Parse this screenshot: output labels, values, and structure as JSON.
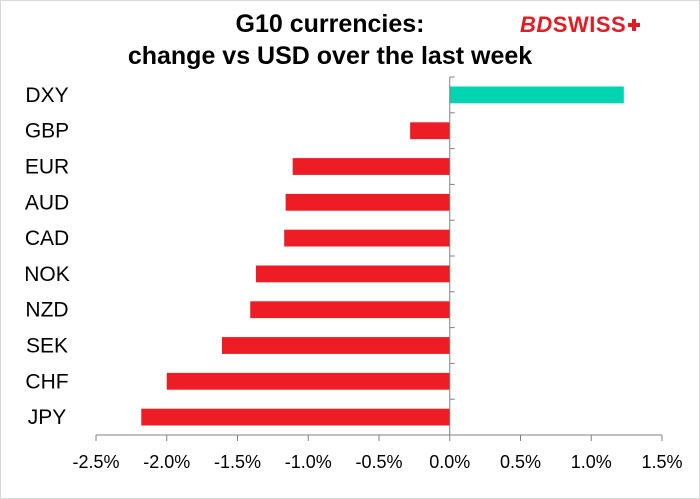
{
  "header": {
    "title_line1": "G10 currencies:",
    "title_line2": "change vs USD over the last week",
    "logo_text": "BDSWISS"
  },
  "chart_data": {
    "type": "bar",
    "orientation": "horizontal",
    "title": "G10 currencies: change vs USD over the last week",
    "categories": [
      "DXY",
      "GBP",
      "EUR",
      "AUD",
      "CAD",
      "NOK",
      "NZD",
      "SEK",
      "CHF",
      "JPY"
    ],
    "values": [
      1.23,
      -0.28,
      -1.11,
      -1.16,
      -1.17,
      -1.37,
      -1.41,
      -1.61,
      -2.0,
      -2.18
    ],
    "value_unit": "%",
    "xlim": [
      -2.5,
      1.5
    ],
    "xticks": [
      -2.5,
      -2.0,
      -1.5,
      -1.0,
      -0.5,
      0.0,
      0.5,
      1.0,
      1.5
    ],
    "xtick_labels": [
      "-2.5%",
      "-2.0%",
      "-1.5%",
      "-1.0%",
      "-0.5%",
      "0.0%",
      "0.5%",
      "1.0%",
      "1.5%"
    ],
    "xlabel": "",
    "ylabel": "",
    "grid": false,
    "legend": "none",
    "colors": {
      "positive": "#00d4b0",
      "negative": "#ee1c25",
      "axis": "#808080"
    }
  }
}
